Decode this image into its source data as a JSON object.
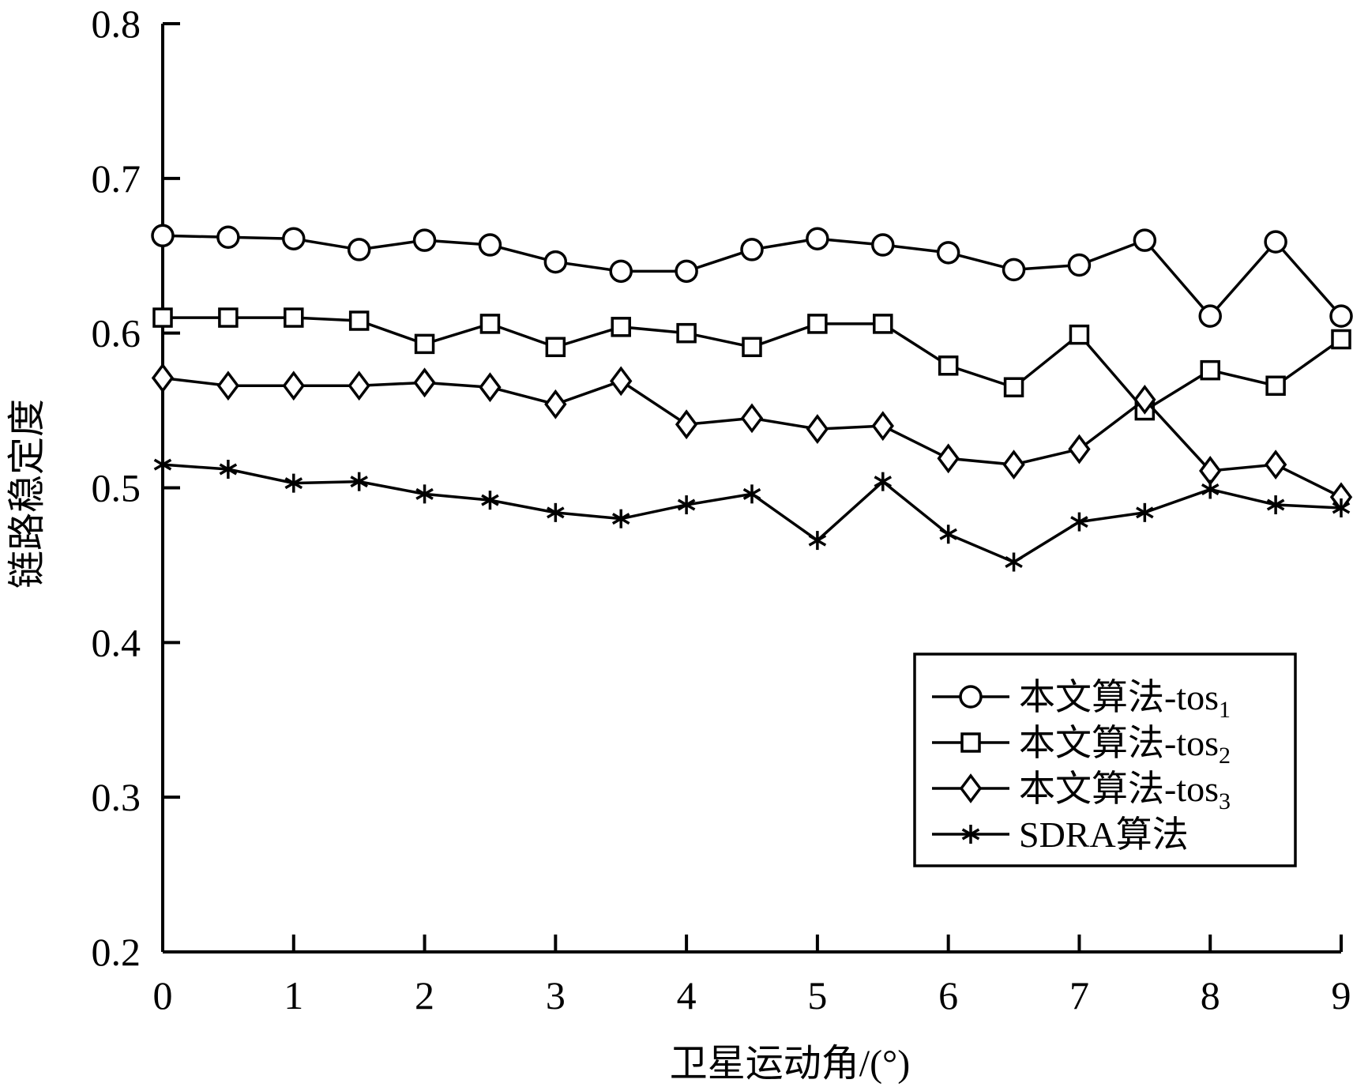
{
  "chart_data": {
    "type": "line",
    "title": "",
    "xlabel": "卫星运动角/(°)",
    "ylabel": "链路稳定度",
    "xlim": [
      0,
      9
    ],
    "ylim": [
      0.2,
      0.8
    ],
    "x_ticks": [
      "0",
      "1",
      "2",
      "3",
      "4",
      "5",
      "6",
      "7",
      "8",
      "9"
    ],
    "y_ticks": [
      "0.2",
      "0.3",
      "0.4",
      "0.5",
      "0.6",
      "0.7",
      "0.8"
    ],
    "x": [
      0,
      0.5,
      1,
      1.5,
      2,
      2.5,
      3,
      3.5,
      4,
      4.5,
      5,
      5.5,
      6,
      6.5,
      7,
      7.5,
      8,
      8.5,
      9
    ],
    "legend_position": "lower-right",
    "grid": false,
    "series": [
      {
        "name": "本文算法-tos",
        "name_subscript": "1",
        "marker": "circle",
        "values": [
          0.663,
          0.662,
          0.661,
          0.654,
          0.66,
          0.657,
          0.646,
          0.64,
          0.64,
          0.654,
          0.661,
          0.657,
          0.652,
          0.641,
          0.644,
          0.66,
          0.611,
          0.659,
          0.611
        ]
      },
      {
        "name": "本文算法-tos",
        "name_subscript": "2",
        "marker": "square",
        "values": [
          0.61,
          0.61,
          0.61,
          0.608,
          0.593,
          0.606,
          0.591,
          0.604,
          0.6,
          0.591,
          0.606,
          0.606,
          0.579,
          0.565,
          0.599,
          0.55,
          0.576,
          0.566,
          0.596
        ]
      },
      {
        "name": "本文算法-tos",
        "name_subscript": "3",
        "marker": "diamond",
        "values": [
          0.571,
          0.566,
          0.566,
          0.566,
          0.568,
          0.565,
          0.554,
          0.569,
          0.541,
          0.545,
          0.538,
          0.54,
          0.519,
          0.515,
          0.525,
          0.557,
          0.511,
          0.515,
          0.494
        ]
      },
      {
        "name": "SDRA算法",
        "name_subscript": "",
        "marker": "asterisk",
        "values": [
          0.515,
          0.512,
          0.503,
          0.504,
          0.496,
          0.492,
          0.484,
          0.48,
          0.489,
          0.496,
          0.466,
          0.504,
          0.47,
          0.452,
          0.478,
          0.484,
          0.499,
          0.489,
          0.487
        ]
      }
    ]
  }
}
